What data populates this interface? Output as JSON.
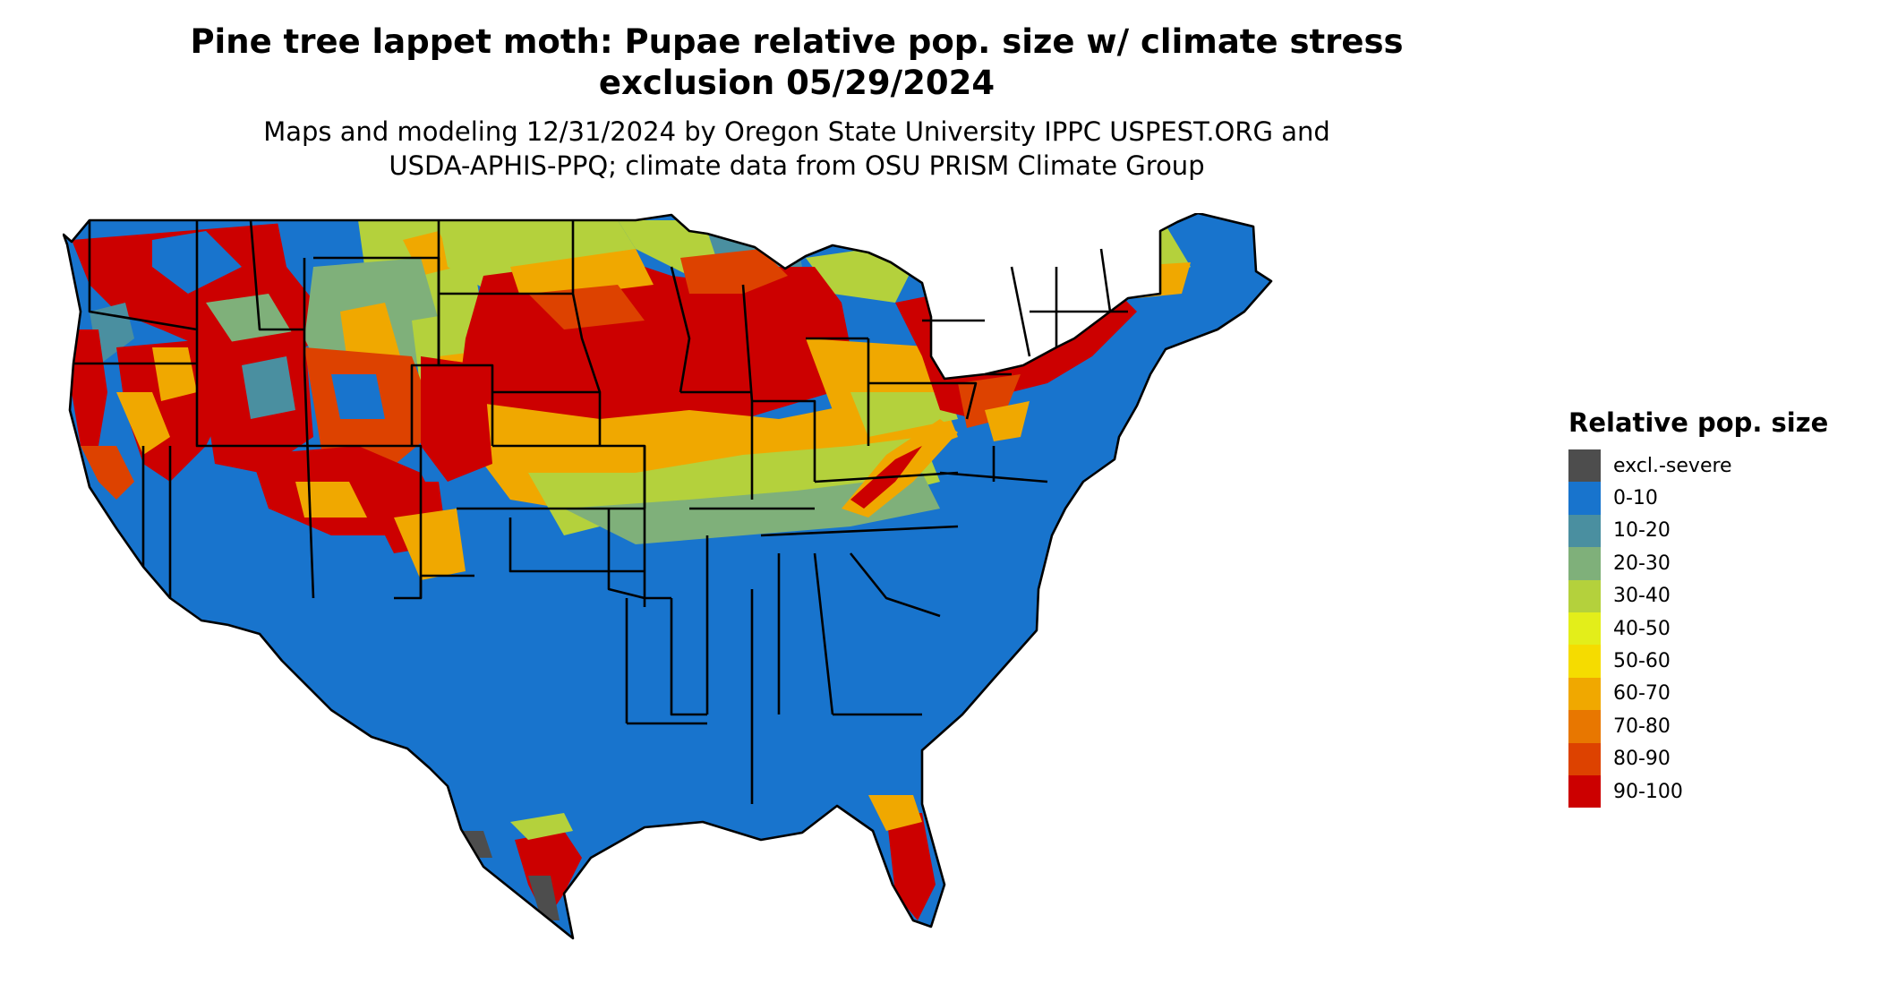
{
  "title_line1": "Pine tree lappet moth: Pupae relative pop. size w/ climate stress",
  "title_line2": "exclusion 05/29/2024",
  "subtitle_line1": "Maps and modeling 12/31/2024 by Oregon State University IPPC USPEST.ORG and",
  "subtitle_line2": "USDA-APHIS-PPQ; climate data from OSU PRISM Climate Group",
  "legend": {
    "title": "Relative pop. size",
    "items": [
      {
        "label": "excl.-severe",
        "color": "#4d4d4d"
      },
      {
        "label": "0-10",
        "color": "#1874cd"
      },
      {
        "label": "10-20",
        "color": "#4a8fa0"
      },
      {
        "label": "20-30",
        "color": "#7fb07a"
      },
      {
        "label": "30-40",
        "color": "#b4d13c"
      },
      {
        "label": "40-50",
        "color": "#e3ee1a"
      },
      {
        "label": "50-60",
        "color": "#f5dc00"
      },
      {
        "label": "60-70",
        "color": "#f0a800"
      },
      {
        "label": "70-80",
        "color": "#e87700"
      },
      {
        "label": "80-90",
        "color": "#dd4200"
      },
      {
        "label": "90-100",
        "color": "#cc0000"
      }
    ]
  },
  "map": {
    "region": "Contiguous United States",
    "border_color": "#000000"
  }
}
